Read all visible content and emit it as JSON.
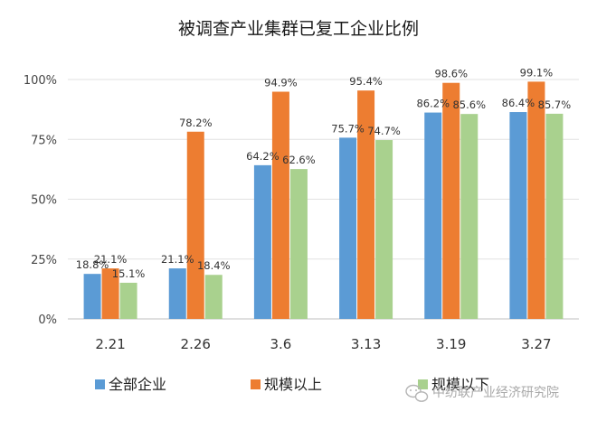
{
  "chart_data": {
    "type": "bar",
    "title": "被调查产业集群已复工企业比例",
    "xlabel": "",
    "ylabel": "",
    "categories": [
      "2.21",
      "2.26",
      "3.6",
      "3.13",
      "3.19",
      "3.27"
    ],
    "ylim": [
      0,
      100
    ],
    "yticks": [
      "0%",
      "25%",
      "50%",
      "75%",
      "100%"
    ],
    "grid": true,
    "legend": "bottom",
    "series": [
      {
        "name": "全部企业",
        "color": "#5b9bd5",
        "values": [
          18.8,
          21.1,
          64.2,
          75.7,
          86.2,
          86.4
        ],
        "labels": [
          "18.8%",
          "21.1%",
          "64.2%",
          "75.7%",
          "86.2%",
          "86.4%"
        ]
      },
      {
        "name": "规模以上",
        "color": "#ed7d31",
        "values": [
          21.1,
          78.2,
          94.9,
          95.4,
          98.6,
          99.1
        ],
        "labels": [
          "21.1%",
          "78.2%",
          "94.9%",
          "95.4%",
          "98.6%",
          "99.1%"
        ]
      },
      {
        "name": "规模以下",
        "color": "#a9d18e",
        "values": [
          15.1,
          18.4,
          62.6,
          74.7,
          85.6,
          85.7
        ],
        "labels": [
          "15.1%",
          "18.4%",
          "62.6%",
          "74.7%",
          "85.6%",
          "85.7%"
        ]
      }
    ]
  },
  "watermark": {
    "text": "中纺联产业经济研究院",
    "icon": "wechat-icon"
  }
}
